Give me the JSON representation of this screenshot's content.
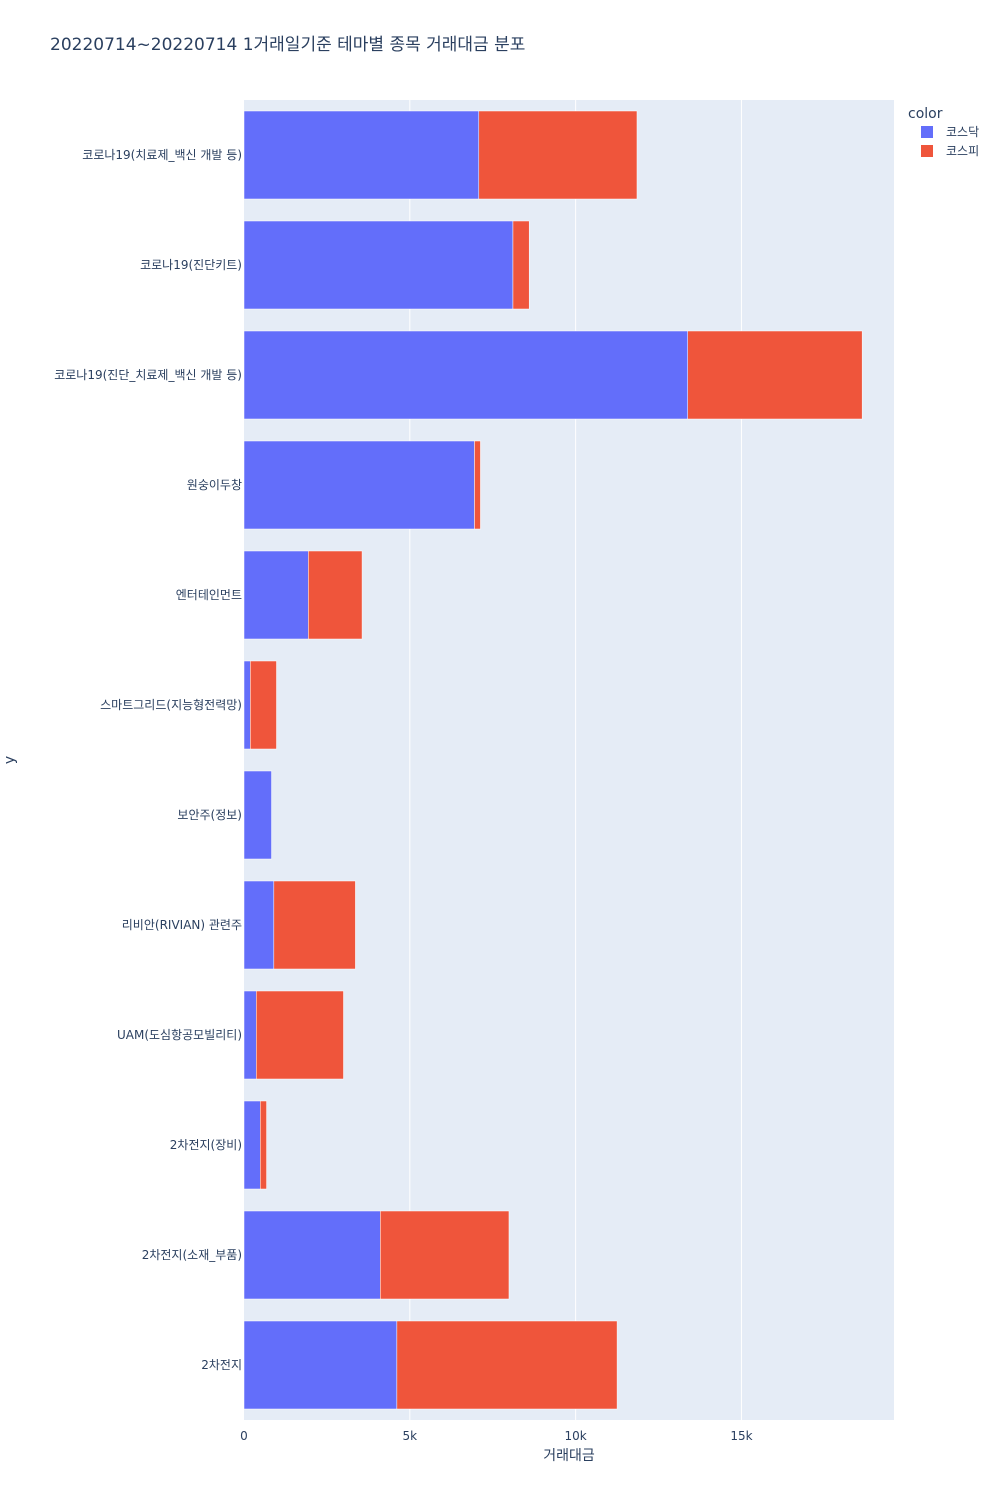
{
  "chart_data": {
    "type": "bar",
    "orientation": "horizontal",
    "barmode": "stack",
    "title": "20220714~20220714 1거래일기준 테마별 종목 거래대금 분포",
    "xlabel": "거래대금",
    "ylabel": "y",
    "xlim": [
      0,
      19600
    ],
    "xticks": [
      0,
      5000,
      10000,
      15000
    ],
    "xtick_labels": [
      "0",
      "5k",
      "10k",
      "15k"
    ],
    "grid": true,
    "legend_title": "color",
    "legend_position": "top-right",
    "categories": [
      "코로나19(치료제_백신 개발 등)",
      "코로나19(진단키트)",
      "코로나19(진단_치료제_백신 개발 등)",
      "원숭이두창",
      "엔터테인먼트",
      "스마트그리드(지능형전력망)",
      "보안주(정보)",
      "리비안(RIVIAN) 관련주",
      "UAM(도심항공모빌리티)",
      "2차전지(장비)",
      "2차전지(소재_부품)",
      "2차전지"
    ],
    "series": [
      {
        "name": "코스닥",
        "color": "#636efa",
        "values": [
          7080,
          8110,
          13380,
          6950,
          1940,
          190,
          830,
          900,
          370,
          490,
          4110,
          4610
        ]
      },
      {
        "name": "코스피",
        "color": "#ef553b",
        "values": [
          4770,
          490,
          5260,
          180,
          1620,
          790,
          0,
          2460,
          2630,
          190,
          3880,
          6640
        ]
      }
    ]
  }
}
